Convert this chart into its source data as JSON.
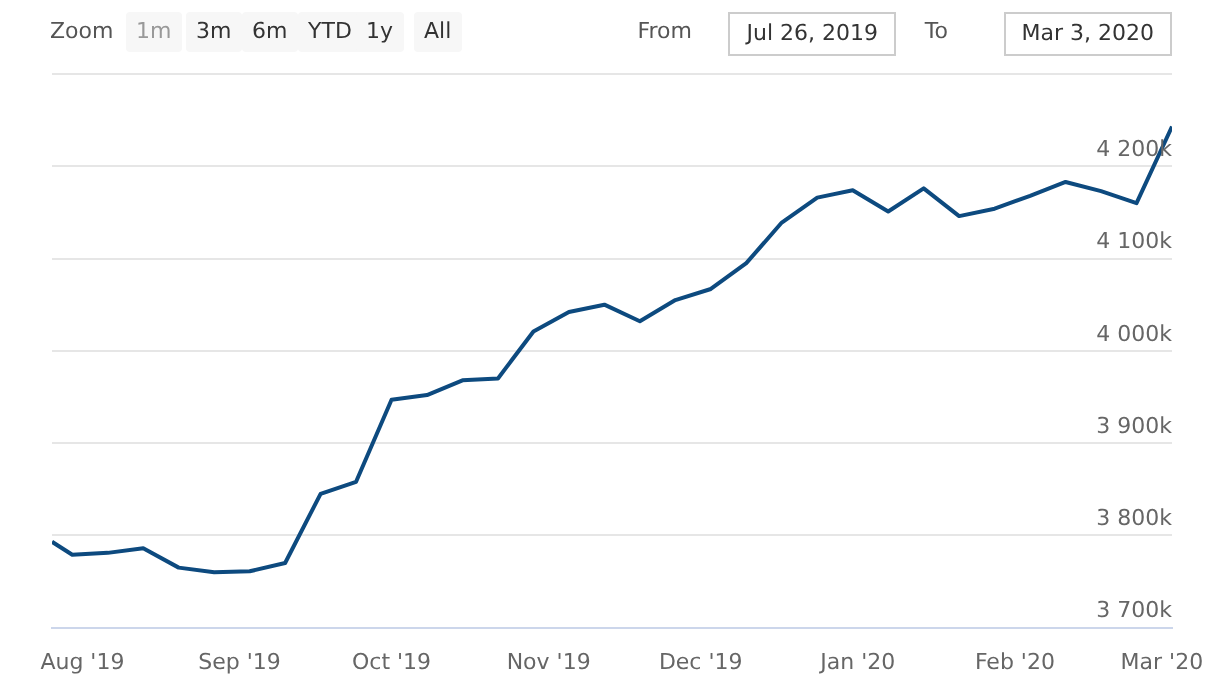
{
  "chart_data": {
    "type": "line",
    "annotations": [
      "Zoom",
      "1m",
      "3m",
      "6m",
      "YTD",
      "1y",
      "All",
      "From",
      "Jul 26, 2019",
      "To",
      "Mar 3, 2020"
    ],
    "x": [
      "2019-07-26",
      "2019-07-30",
      "2019-08-06",
      "2019-08-13",
      "2019-08-20",
      "2019-08-27",
      "2019-09-03",
      "2019-09-10",
      "2019-09-17",
      "2019-09-24",
      "2019-10-01",
      "2019-10-08",
      "2019-10-15",
      "2019-10-22",
      "2019-10-29",
      "2019-11-05",
      "2019-11-12",
      "2019-11-19",
      "2019-11-26",
      "2019-12-03",
      "2019-12-10",
      "2019-12-17",
      "2019-12-24",
      "2019-12-31",
      "2020-01-07",
      "2020-01-14",
      "2020-01-21",
      "2020-01-28",
      "2020-02-04",
      "2020-02-11",
      "2020-02-18",
      "2020-02-25",
      "2020-03-03"
    ],
    "series": [
      {
        "color": "#0d4a7f",
        "values": [
          3793,
          3779,
          3781,
          3786,
          3765,
          3760,
          3761,
          3770,
          3845,
          3858,
          3947,
          3952,
          3968,
          3970,
          4021,
          4042,
          4050,
          4032,
          4055,
          4067,
          4095,
          4139,
          4166,
          4174,
          4151,
          4176,
          4146,
          4154,
          4168,
          4183,
          4173,
          4160,
          4243
        ]
      }
    ],
    "xlim": [
      "2019-07-26",
      "2020-03-03"
    ],
    "xticks": [
      {
        "value": "2019-08-01",
        "label": "Aug '19"
      },
      {
        "value": "2019-09-01",
        "label": "Sep '19"
      },
      {
        "value": "2019-10-01",
        "label": "Oct '19"
      },
      {
        "value": "2019-11-01",
        "label": "Nov '19"
      },
      {
        "value": "2019-12-01",
        "label": "Dec '19"
      },
      {
        "value": "2020-01-01",
        "label": "Jan '20"
      },
      {
        "value": "2020-02-01",
        "label": "Feb '20"
      },
      {
        "value": "2020-03-01",
        "label": "Mar '20"
      }
    ],
    "ylim": [
      3700,
      4300
    ],
    "yticks": [
      {
        "value": 3700,
        "label": "3 700k"
      },
      {
        "value": 3800,
        "label": "3 800k"
      },
      {
        "value": 3900,
        "label": "3 900k"
      },
      {
        "value": 4000,
        "label": "4 000k"
      },
      {
        "value": 4100,
        "label": "4 100k"
      },
      {
        "value": 4200,
        "label": "4 200k"
      },
      {
        "value": 4300,
        "label": null
      }
    ],
    "grid": "y",
    "legend": false,
    "marker": "none",
    "line_style": "solid"
  }
}
